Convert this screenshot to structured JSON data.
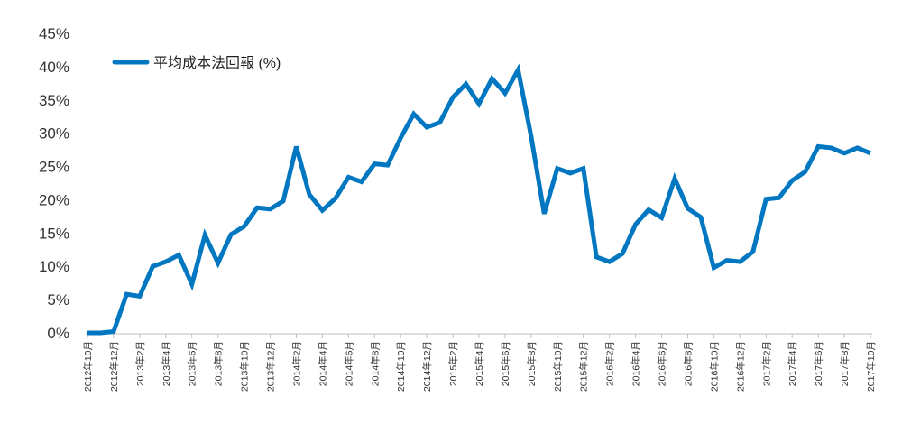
{
  "chart_data": {
    "type": "line",
    "title": "",
    "xlabel": "",
    "ylabel": "",
    "ylim": [
      0,
      45
    ],
    "y_ticks": [
      "0%",
      "5%",
      "10%",
      "15%",
      "20%",
      "25%",
      "30%",
      "35%",
      "40%",
      "45%"
    ],
    "y_tick_values": [
      0,
      5,
      10,
      15,
      20,
      25,
      30,
      35,
      40,
      45
    ],
    "grid": false,
    "legend_position": "top-left",
    "line_color": "#0077c0",
    "x_tick_labels": [
      "2012年10月",
      "2012年12月",
      "2013年2月",
      "2013年4月",
      "2013年6月",
      "2013年8月",
      "2013年10月",
      "2013年12月",
      "2014年2月",
      "2014年4月",
      "2014年6月",
      "2014年8月",
      "2014年10月",
      "2014年12月",
      "2015年2月",
      "2015年4月",
      "2015年6月",
      "2015年8月",
      "2015年10月",
      "2015年12月",
      "2016年2月",
      "2016年4月",
      "2016年6月",
      "2016年8月",
      "2016年10月",
      "2016年12月",
      "2017年2月",
      "2017年4月",
      "2017年6月",
      "2017年8月",
      "2017年10月"
    ],
    "series": [
      {
        "name": "平均成本法回報 (%)",
        "values": [
          0.0,
          0.0,
          0.2,
          5.8,
          5.5,
          10.0,
          10.7,
          11.7,
          7.3,
          14.7,
          10.5,
          14.8,
          16.0,
          18.8,
          18.6,
          19.8,
          28.0,
          20.8,
          18.4,
          20.2,
          23.4,
          22.7,
          25.4,
          25.2,
          29.3,
          32.9,
          30.9,
          31.6,
          35.4,
          37.4,
          34.4,
          38.2,
          36.0,
          39.5,
          29.5,
          17.9,
          24.7,
          24.0,
          24.7,
          11.4,
          10.7,
          11.9,
          16.3,
          18.5,
          17.3,
          23.2,
          18.7,
          17.4,
          9.8,
          10.9,
          10.7,
          12.2,
          20.1,
          20.3,
          22.9,
          24.2,
          28.0,
          27.8,
          27.0,
          27.8,
          27.0
        ]
      }
    ]
  }
}
